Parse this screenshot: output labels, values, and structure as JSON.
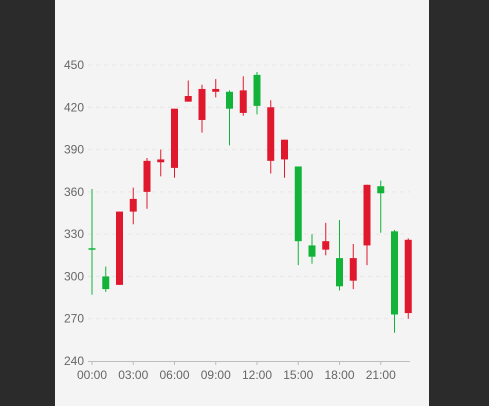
{
  "chart_data": {
    "type": "candlestick",
    "x_tick_labels": [
      "00:00",
      "03:00",
      "06:00",
      "09:00",
      "12:00",
      "15:00",
      "18:00",
      "21:00"
    ],
    "y_tick_labels": [
      "240",
      "270",
      "300",
      "330",
      "360",
      "390",
      "420",
      "450"
    ],
    "ylim": [
      240,
      450
    ],
    "grid": true,
    "colors": {
      "up": "#13b33a",
      "down": "#e0182d",
      "grid": "#e6e6e6",
      "axis": "#bdbdbd",
      "text": "#666666"
    },
    "candles": [
      {
        "x": 0,
        "open": 320,
        "close": 320,
        "high": 362,
        "low": 287
      },
      {
        "x": 1,
        "open": 291,
        "close": 300,
        "high": 307,
        "low": 289
      },
      {
        "x": 2,
        "open": 346,
        "close": 294,
        "high": 346,
        "low": 294
      },
      {
        "x": 3,
        "open": 355,
        "close": 346,
        "high": 363,
        "low": 337
      },
      {
        "x": 4,
        "open": 382,
        "close": 360,
        "high": 384,
        "low": 348
      },
      {
        "x": 5,
        "open": 383,
        "close": 381,
        "high": 390,
        "low": 371
      },
      {
        "x": 6,
        "open": 419,
        "close": 377,
        "high": 419,
        "low": 370
      },
      {
        "x": 7,
        "open": 428,
        "close": 424,
        "high": 439,
        "low": 424
      },
      {
        "x": 8,
        "open": 433,
        "close": 411,
        "high": 436,
        "low": 402
      },
      {
        "x": 9,
        "open": 433,
        "close": 431,
        "high": 440,
        "low": 427
      },
      {
        "x": 10,
        "open": 419,
        "close": 431,
        "high": 432,
        "low": 393
      },
      {
        "x": 11,
        "open": 432,
        "close": 416,
        "high": 442,
        "low": 414
      },
      {
        "x": 12,
        "open": 421,
        "close": 443,
        "high": 445,
        "low": 415
      },
      {
        "x": 13,
        "open": 420,
        "close": 382,
        "high": 425,
        "low": 373
      },
      {
        "x": 14,
        "open": 397,
        "close": 383,
        "high": 397,
        "low": 370
      },
      {
        "x": 15,
        "open": 325,
        "close": 378,
        "high": 378,
        "low": 308
      },
      {
        "x": 16,
        "open": 314,
        "close": 322,
        "high": 330,
        "low": 309
      },
      {
        "x": 17,
        "open": 325,
        "close": 319,
        "high": 338,
        "low": 315
      },
      {
        "x": 18,
        "open": 293,
        "close": 313,
        "high": 340,
        "low": 290
      },
      {
        "x": 19,
        "open": 313,
        "close": 297,
        "high": 323,
        "low": 291
      },
      {
        "x": 20,
        "open": 365,
        "close": 322,
        "high": 365,
        "low": 308
      },
      {
        "x": 21,
        "open": 359,
        "close": 364,
        "high": 368,
        "low": 331
      },
      {
        "x": 22,
        "open": 273,
        "close": 332,
        "high": 333,
        "low": 260
      },
      {
        "x": 23,
        "open": 326,
        "close": 274,
        "high": 327,
        "low": 270
      }
    ]
  }
}
